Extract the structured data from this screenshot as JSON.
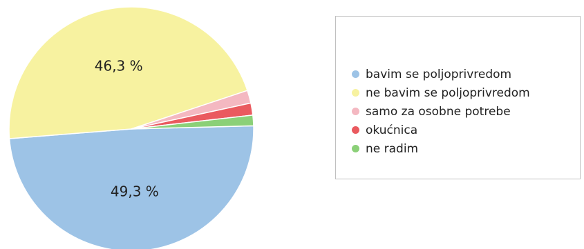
{
  "chart_data": {
    "type": "pie",
    "title": "",
    "slices": [
      {
        "name": "bavim se poljoprivredom",
        "value": 49.3,
        "label": "49,3 %",
        "color": "#9dc3e6"
      },
      {
        "name": "ne bavim se poljoprivredom",
        "value": 46.3,
        "label": "46,3 %",
        "color": "#f7f2a0"
      },
      {
        "name": "samo za osobne potrebe",
        "value": 1.7,
        "label": "",
        "color": "#f4b8c1"
      },
      {
        "name": "okućnica",
        "value": 1.6,
        "label": "",
        "color": "#ea5a5f"
      },
      {
        "name": "ne radim",
        "value": 1.4,
        "label": "",
        "color": "#8bd078"
      }
    ],
    "legend_position": "right"
  }
}
